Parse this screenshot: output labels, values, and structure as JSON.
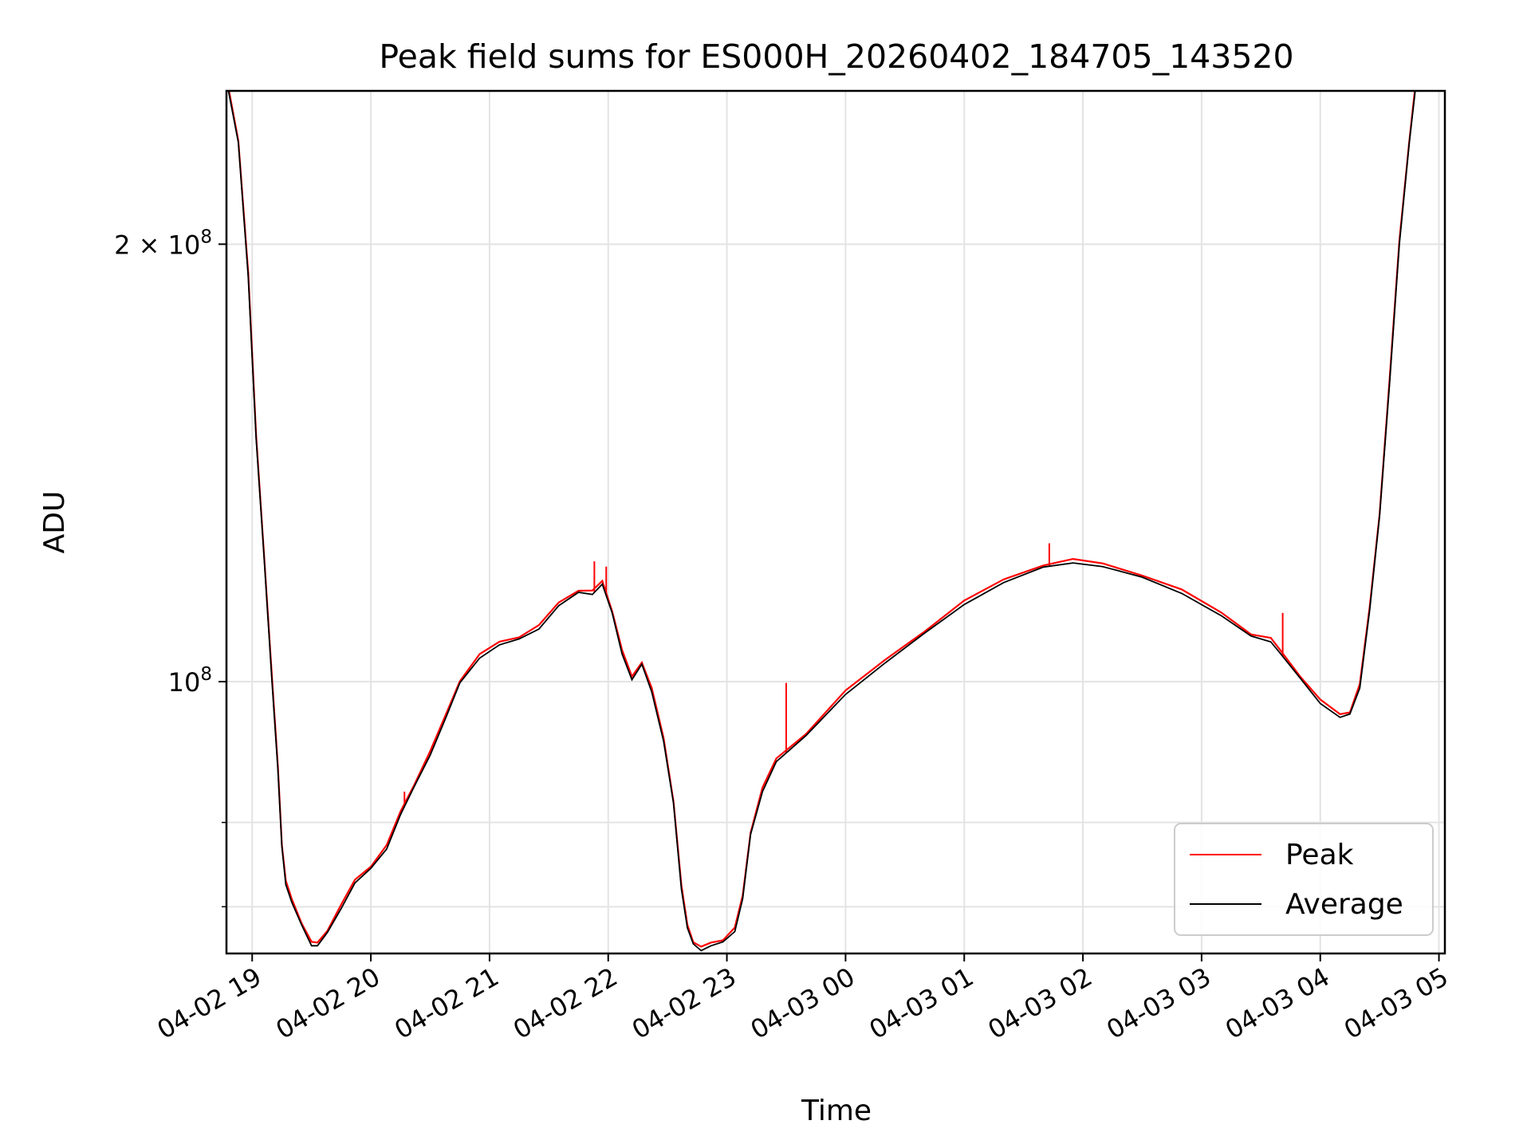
{
  "chart_data": {
    "type": "line",
    "title": "Peak field sums for ES000H_20260402_184705_143520",
    "xlabel": "Time",
    "ylabel": "ADU",
    "y_scale": "log",
    "ylim": [
      65000000,
      255000000
    ],
    "xlim": [
      "2026-04-02 18:47",
      "2026-04-03 05:03"
    ],
    "grid": true,
    "legend_position": "lower right",
    "x_ticks": [
      {
        "t": "2026-04-02 19:00",
        "label": "04-02 19"
      },
      {
        "t": "2026-04-02 20:00",
        "label": "04-02 20"
      },
      {
        "t": "2026-04-02 21:00",
        "label": "04-02 21"
      },
      {
        "t": "2026-04-02 22:00",
        "label": "04-02 22"
      },
      {
        "t": "2026-04-02 23:00",
        "label": "04-02 23"
      },
      {
        "t": "2026-04-03 00:00",
        "label": "04-03 00"
      },
      {
        "t": "2026-04-03 01:00",
        "label": "04-03 01"
      },
      {
        "t": "2026-04-03 02:00",
        "label": "04-03 02"
      },
      {
        "t": "2026-04-03 03:00",
        "label": "04-03 03"
      },
      {
        "t": "2026-04-03 04:00",
        "label": "04-03 04"
      },
      {
        "t": "2026-04-03 05:00",
        "label": "04-03 05"
      }
    ],
    "y_ticks_major": [
      {
        "value": 100000000,
        "base": "10",
        "exp": "8",
        "mult": ""
      },
      {
        "value": 200000000,
        "base": "10",
        "exp": "8",
        "mult": "2 × "
      }
    ],
    "y_ticks_minor": [
      70000000,
      80000000
    ],
    "series": [
      {
        "name": "Average",
        "color": "#000000",
        "points": [
          [
            "2026-04-02 18:48",
            255000000
          ],
          [
            "2026-04-02 18:53",
            235000000
          ],
          [
            "2026-04-02 18:58",
            190000000
          ],
          [
            "2026-04-02 19:02",
            147000000
          ],
          [
            "2026-04-02 19:06",
            122000000
          ],
          [
            "2026-04-02 19:10",
            100000000
          ],
          [
            "2026-04-02 19:13",
            87000000
          ],
          [
            "2026-04-02 19:15",
            77000000
          ],
          [
            "2026-04-02 19:17",
            72500000
          ],
          [
            "2026-04-02 19:20",
            70500000
          ],
          [
            "2026-04-02 19:25",
            68000000
          ],
          [
            "2026-04-02 19:30",
            65800000
          ],
          [
            "2026-04-02 19:33",
            65800000
          ],
          [
            "2026-04-02 19:38",
            67200000
          ],
          [
            "2026-04-02 19:45",
            69800000
          ],
          [
            "2026-04-02 19:52",
            72700000
          ],
          [
            "2026-04-02 20:00",
            74400000
          ],
          [
            "2026-04-02 20:08",
            76700000
          ],
          [
            "2026-04-02 20:15",
            81000000
          ],
          [
            "2026-04-02 20:22",
            84700000
          ],
          [
            "2026-04-02 20:30",
            89000000
          ],
          [
            "2026-04-02 20:38",
            94500000
          ],
          [
            "2026-04-02 20:45",
            99800000
          ],
          [
            "2026-04-02 20:55",
            103800000
          ],
          [
            "2026-04-02 21:05",
            106000000
          ],
          [
            "2026-04-02 21:15",
            107000000
          ],
          [
            "2026-04-02 21:25",
            108700000
          ],
          [
            "2026-04-02 21:35",
            112800000
          ],
          [
            "2026-04-02 21:45",
            115200000
          ],
          [
            "2026-04-02 21:52",
            114800000
          ],
          [
            "2026-04-02 21:57",
            116700000
          ],
          [
            "2026-04-02 22:02",
            111500000
          ],
          [
            "2026-04-02 22:07",
            104500000
          ],
          [
            "2026-04-02 22:12",
            100300000
          ],
          [
            "2026-04-02 22:17",
            102800000
          ],
          [
            "2026-04-02 22:22",
            98400000
          ],
          [
            "2026-04-02 22:28",
            91000000
          ],
          [
            "2026-04-02 22:33",
            82500000
          ],
          [
            "2026-04-02 22:37",
            72000000
          ],
          [
            "2026-04-02 22:40",
            67700000
          ],
          [
            "2026-04-02 22:43",
            66000000
          ],
          [
            "2026-04-02 22:47",
            65300000
          ],
          [
            "2026-04-02 22:52",
            65800000
          ],
          [
            "2026-04-02 22:58",
            66200000
          ],
          [
            "2026-04-02 23:04",
            67300000
          ],
          [
            "2026-04-02 23:08",
            70900000
          ],
          [
            "2026-04-02 23:12",
            78500000
          ],
          [
            "2026-04-02 23:18",
            84000000
          ],
          [
            "2026-04-02 23:25",
            88100000
          ],
          [
            "2026-04-02 23:40",
            91800000
          ],
          [
            "2026-04-03 00:00",
            98000000
          ],
          [
            "2026-04-03 00:20",
            103000000
          ],
          [
            "2026-04-03 00:40",
            108000000
          ],
          [
            "2026-04-03 01:00",
            113000000
          ],
          [
            "2026-04-03 01:20",
            117000000
          ],
          [
            "2026-04-03 01:40",
            119900000
          ],
          [
            "2026-04-03 01:55",
            120700000
          ],
          [
            "2026-04-03 02:10",
            120000000
          ],
          [
            "2026-04-03 02:30",
            118000000
          ],
          [
            "2026-04-03 02:50",
            115000000
          ],
          [
            "2026-04-03 03:10",
            111000000
          ],
          [
            "2026-04-03 03:25",
            107500000
          ],
          [
            "2026-04-03 03:35",
            106500000
          ],
          [
            "2026-04-03 03:40",
            104500000
          ],
          [
            "2026-04-03 03:50",
            100500000
          ],
          [
            "2026-04-03 04:00",
            96600000
          ],
          [
            "2026-04-03 04:10",
            94500000
          ],
          [
            "2026-04-03 04:15",
            95000000
          ],
          [
            "2026-04-03 04:20",
            99000000
          ],
          [
            "2026-04-03 04:25",
            112000000
          ],
          [
            "2026-04-03 04:30",
            130000000
          ],
          [
            "2026-04-03 04:35",
            160000000
          ],
          [
            "2026-04-03 04:40",
            200000000
          ],
          [
            "2026-04-03 04:45",
            235000000
          ],
          [
            "2026-04-03 04:48",
            255000000
          ]
        ]
      },
      {
        "name": "Peak",
        "color": "#ff0000",
        "spikes": [
          [
            "2026-04-02 20:17",
            84000000
          ],
          [
            "2026-04-02 21:53",
            121000000
          ],
          [
            "2026-04-02 21:59",
            120000000
          ],
          [
            "2026-04-02 23:30",
            99800000
          ],
          [
            "2026-04-03 01:43",
            124500000
          ],
          [
            "2026-04-03 03:41",
            111500000
          ]
        ]
      }
    ]
  }
}
